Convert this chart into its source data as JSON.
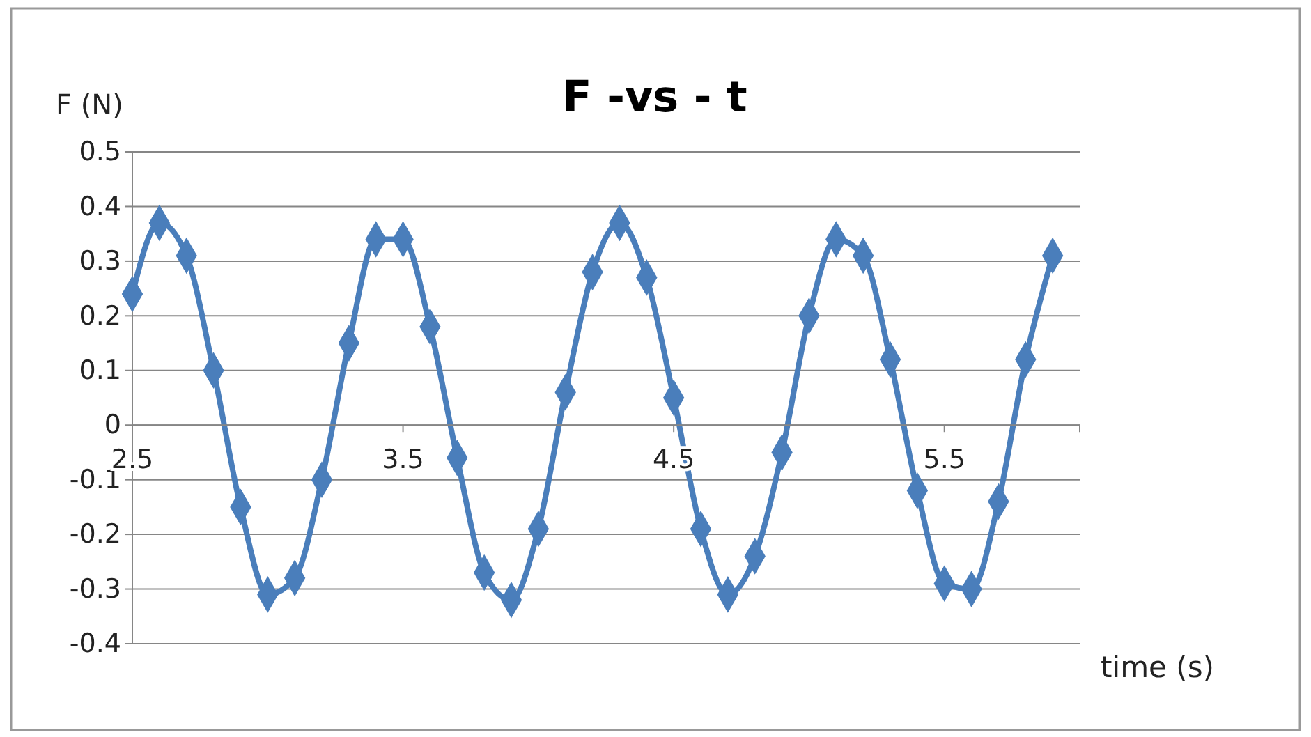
{
  "chart_data": {
    "type": "line",
    "title": "F -vs - t",
    "xlabel": "time (s)",
    "ylabel": "F (N)",
    "x": [
      2.5,
      2.6,
      2.7,
      2.8,
      2.9,
      3.0,
      3.1,
      3.2,
      3.3,
      3.4,
      3.5,
      3.6,
      3.7,
      3.8,
      3.9,
      4.0,
      4.1,
      4.2,
      4.3,
      4.4,
      4.5,
      4.6,
      4.7,
      4.8,
      4.9,
      5.0,
      5.1,
      5.2,
      5.3,
      5.4,
      5.5,
      5.6,
      5.7,
      5.8,
      5.9
    ],
    "series": [
      {
        "color": "#4a7ebb",
        "values": [
          0.24,
          0.37,
          0.31,
          0.1,
          -0.15,
          -0.31,
          -0.28,
          -0.1,
          0.15,
          0.34,
          0.34,
          0.18,
          -0.06,
          -0.27,
          -0.32,
          -0.19,
          0.06,
          0.28,
          0.37,
          0.27,
          0.05,
          -0.19,
          -0.31,
          -0.24,
          -0.05,
          0.2,
          0.34,
          0.31,
          0.12,
          -0.12,
          -0.29,
          -0.3,
          -0.14,
          0.12,
          0.31
        ]
      }
    ],
    "xlim": [
      2.5,
      6.0
    ],
    "xticks": [
      2.5,
      3.5,
      4.5,
      5.5
    ],
    "ylim": [
      -0.4,
      0.5
    ],
    "yticks": [
      -0.4,
      -0.3,
      -0.2,
      -0.1,
      0,
      0.1,
      0.2,
      0.3,
      0.4,
      0.5
    ],
    "grid": "y",
    "marker": "diamond",
    "line_style": "solid"
  }
}
